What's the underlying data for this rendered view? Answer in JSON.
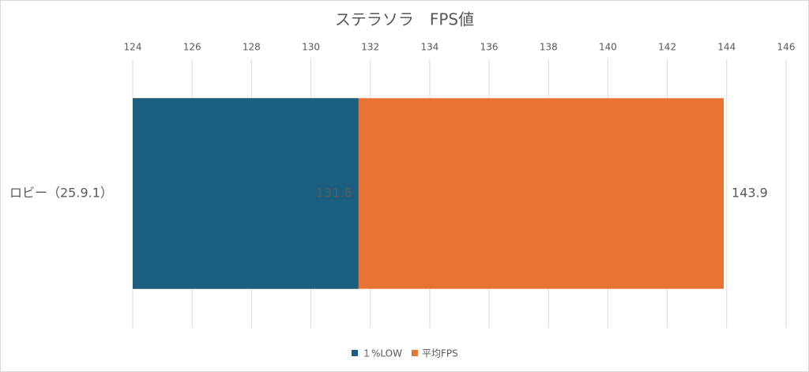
{
  "chart_data": {
    "type": "bar",
    "orientation": "horizontal",
    "title": "ステラソラ　FPS値",
    "categories": [
      "ロビー（25.9.1）"
    ],
    "series": [
      {
        "name": "１%LOW",
        "color": "#1a5e80",
        "values": [
          131.6
        ],
        "label_position": "inside_end"
      },
      {
        "name": "平均FPS",
        "color": "#e87333",
        "values": [
          143.9
        ],
        "label_position": "outside_end"
      }
    ],
    "xlim": [
      124,
      146
    ],
    "xticks": [
      124,
      126,
      128,
      130,
      132,
      134,
      136,
      138,
      140,
      142,
      144,
      146
    ],
    "grid": true,
    "legend": "bottom"
  }
}
